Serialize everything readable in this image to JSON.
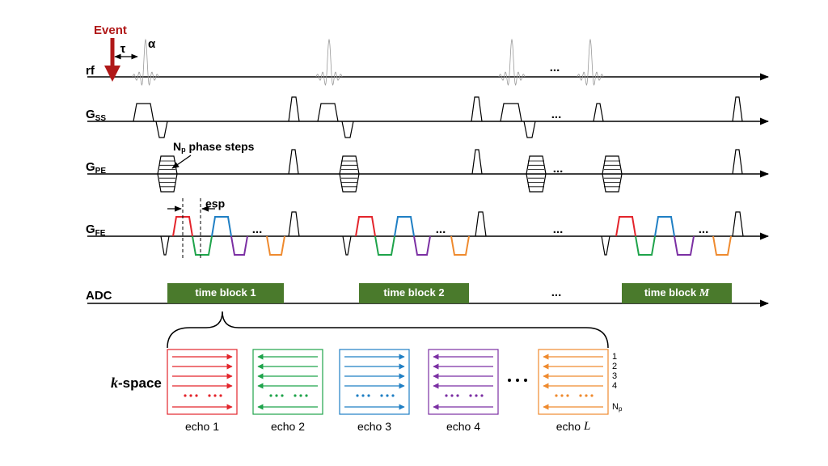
{
  "event": "Event",
  "tau": "τ",
  "alpha": "α",
  "rows": {
    "rf": "rf",
    "gss": {
      "main": "G",
      "sub": "SS"
    },
    "gpe": {
      "main": "G",
      "sub": "PE"
    },
    "gfe": {
      "main": "G",
      "sub": "FE"
    },
    "adc": "ADC"
  },
  "phase_steps": {
    "main": "N",
    "sub": "p",
    "rest": " phase steps"
  },
  "esp": "esp",
  "ellipsis": "...",
  "time_blocks": [
    {
      "text": "time block 1"
    },
    {
      "text": "time block 2"
    },
    {
      "text": "time block ",
      "var": "M"
    }
  ],
  "kspace": {
    "var": "k",
    "rest": "-space"
  },
  "echoes": [
    {
      "text": "echo 1"
    },
    {
      "text": "echo 2"
    },
    {
      "text": "echo 3"
    },
    {
      "text": "echo 4"
    },
    {
      "text": "echo ",
      "var": "L"
    }
  ],
  "line_labels": [
    "1",
    "2",
    "3",
    "4",
    {
      "main": "N",
      "sub": "p"
    }
  ]
}
